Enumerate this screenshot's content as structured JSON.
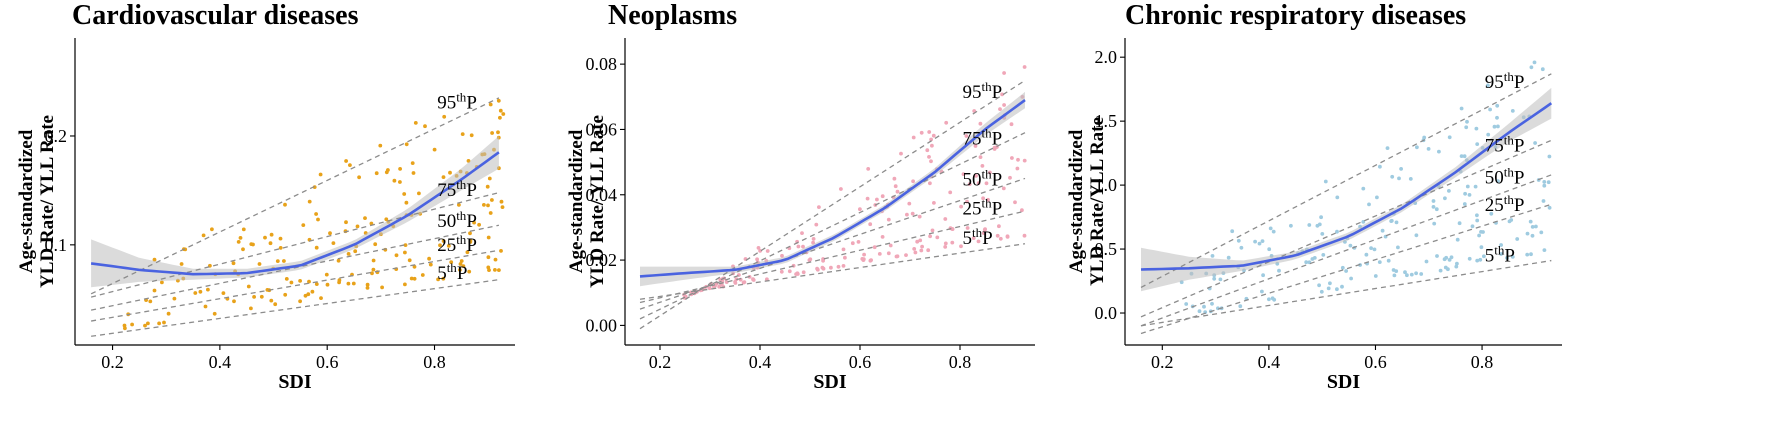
{
  "chart_data": [
    {
      "type": "scatter",
      "title": "Cardiovascular diseases",
      "ylabel_line1": "Age-standardized",
      "ylabel_line2": "YLD Rate/ YLL Rate",
      "xlabel": "SDI",
      "xlim": [
        0.13,
        0.95
      ],
      "ylim": [
        0.008,
        0.29
      ],
      "xticks": [
        "0.2",
        "0.4",
        "0.6",
        "0.8"
      ],
      "xtick_values": [
        0.2,
        0.4,
        0.6,
        0.8
      ],
      "yticks": [
        "0.1",
        "0.2"
      ],
      "ytick_values": [
        0.1,
        0.2
      ],
      "point_color": "#e8a21a",
      "seed": 11,
      "n_points": 200,
      "smooth": {
        "x": [
          0.16,
          0.25,
          0.35,
          0.45,
          0.55,
          0.65,
          0.75,
          0.85,
          0.92
        ],
        "y": [
          0.083,
          0.077,
          0.073,
          0.074,
          0.081,
          0.1,
          0.127,
          0.16,
          0.185
        ],
        "band_halfwidth": [
          0.022,
          0.011,
          0.005,
          0.004,
          0.004,
          0.004,
          0.006,
          0.01,
          0.015
        ],
        "color": "#4a63e0"
      },
      "quantile_lines": [
        {
          "label": "95",
          "x": [
            0.16,
            0.92
          ],
          "y": [
            0.055,
            0.235
          ]
        },
        {
          "label": "75",
          "x": [
            0.16,
            0.92
          ],
          "y": [
            0.052,
            0.148
          ]
        },
        {
          "label": "50",
          "x": [
            0.16,
            0.92
          ],
          "y": [
            0.04,
            0.118
          ]
        },
        {
          "label": "25",
          "x": [
            0.16,
            0.92
          ],
          "y": [
            0.03,
            0.095
          ]
        },
        {
          "label": "5",
          "x": [
            0.16,
            0.92
          ],
          "y": [
            0.016,
            0.068
          ]
        }
      ],
      "quantile_suffix": "th",
      "quantile_unit": "P"
    },
    {
      "type": "scatter",
      "title": "Neoplasms",
      "ylabel_line1": "Age-standardized",
      "ylabel_line2": "YLD Rate/ YLL Rate",
      "xlabel": "SDI",
      "xlim": [
        0.13,
        0.95
      ],
      "ylim": [
        -0.006,
        0.088
      ],
      "xticks": [
        "0.2",
        "0.4",
        "0.6",
        "0.8"
      ],
      "xtick_values": [
        0.2,
        0.4,
        0.6,
        0.8
      ],
      "yticks": [
        "0.00",
        "0.02",
        "0.04",
        "0.06",
        "0.08"
      ],
      "ytick_values": [
        0.0,
        0.02,
        0.04,
        0.06,
        0.08
      ],
      "point_color": "#f0a7b8",
      "seed": 23,
      "n_points": 200,
      "smooth": {
        "x": [
          0.16,
          0.25,
          0.35,
          0.45,
          0.55,
          0.65,
          0.75,
          0.85,
          0.93
        ],
        "y": [
          0.015,
          0.016,
          0.017,
          0.02,
          0.027,
          0.036,
          0.047,
          0.06,
          0.069
        ],
        "band_halfwidth": [
          0.003,
          0.002,
          0.001,
          0.001,
          0.001,
          0.001,
          0.0012,
          0.0018,
          0.0025
        ],
        "color": "#4a63e0"
      },
      "quantile_lines": [
        {
          "label": "95",
          "x": [
            0.16,
            0.93
          ],
          "y": [
            -0.001,
            0.075
          ]
        },
        {
          "label": "75",
          "x": [
            0.16,
            0.93
          ],
          "y": [
            0.002,
            0.059
          ]
        },
        {
          "label": "50",
          "x": [
            0.16,
            0.93
          ],
          "y": [
            0.005,
            0.045
          ]
        },
        {
          "label": "25",
          "x": [
            0.16,
            0.93
          ],
          "y": [
            0.007,
            0.035
          ]
        },
        {
          "label": "5",
          "x": [
            0.16,
            0.93
          ],
          "y": [
            0.008,
            0.025
          ]
        }
      ],
      "quantile_suffix": "th",
      "quantile_unit": "P"
    },
    {
      "type": "scatter",
      "title": "Chronic respiratory diseases",
      "ylabel_line1": "Age-standardized",
      "ylabel_line2": "YLD Rate/YLL Rate",
      "xlabel": "SDI",
      "xlim": [
        0.13,
        0.95
      ],
      "ylim": [
        -0.25,
        2.15
      ],
      "xticks": [
        "0.2",
        "0.4",
        "0.6",
        "0.8"
      ],
      "xtick_values": [
        0.2,
        0.4,
        0.6,
        0.8
      ],
      "yticks": [
        "0.0",
        "0.5",
        "1.0",
        "1.5",
        "2.0"
      ],
      "ytick_values": [
        0.0,
        0.5,
        1.0,
        1.5,
        2.0
      ],
      "point_color": "#9fcbe0",
      "seed": 37,
      "n_points": 200,
      "smooth": {
        "x": [
          0.16,
          0.25,
          0.35,
          0.45,
          0.55,
          0.65,
          0.75,
          0.85,
          0.93
        ],
        "y": [
          0.34,
          0.35,
          0.37,
          0.45,
          0.6,
          0.82,
          1.1,
          1.41,
          1.64
        ],
        "band_halfwidth": [
          0.17,
          0.09,
          0.04,
          0.03,
          0.03,
          0.03,
          0.04,
          0.07,
          0.12
        ],
        "color": "#4a63e0"
      },
      "quantile_lines": [
        {
          "label": "95",
          "x": [
            0.16,
            0.93
          ],
          "y": [
            0.2,
            1.87
          ]
        },
        {
          "label": "75",
          "x": [
            0.16,
            0.93
          ],
          "y": [
            -0.03,
            1.35
          ]
        },
        {
          "label": "50",
          "x": [
            0.16,
            0.93
          ],
          "y": [
            -0.1,
            1.08
          ]
        },
        {
          "label": "25",
          "x": [
            0.16,
            0.93
          ],
          "y": [
            -0.16,
            0.85
          ]
        },
        {
          "label": "5",
          "x": [
            0.16,
            0.93
          ],
          "y": [
            -0.1,
            0.41
          ]
        }
      ],
      "quantile_suffix": "th",
      "quantile_unit": "P"
    }
  ]
}
